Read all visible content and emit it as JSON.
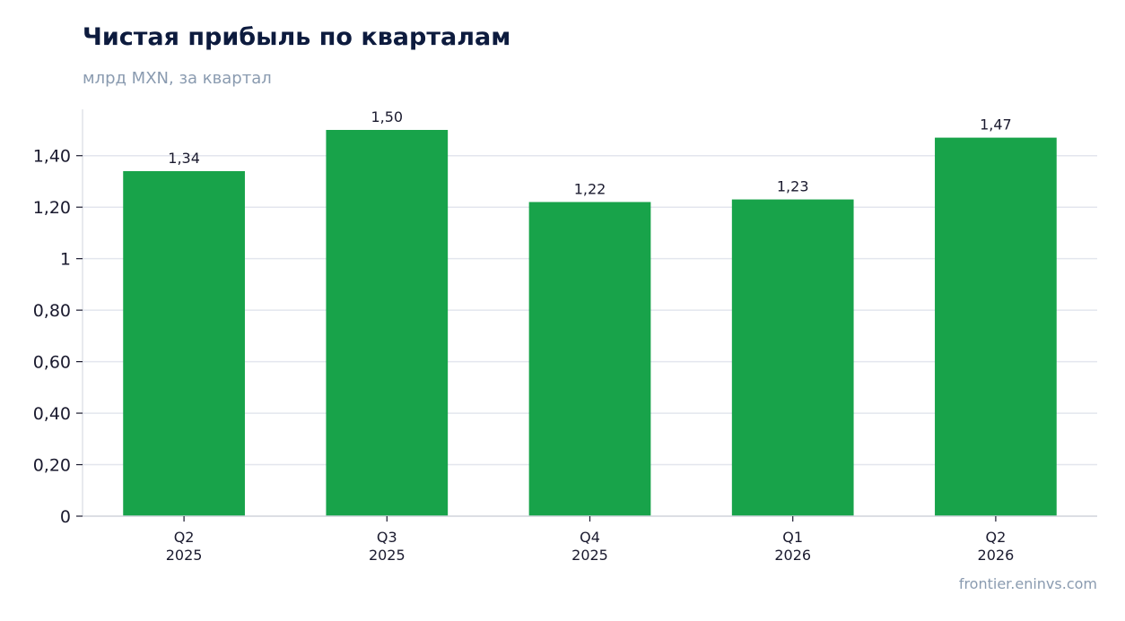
{
  "chart_data": {
    "type": "bar",
    "title": "Чистая прибыль по кварталам",
    "subtitle": "млрд MXN, за квартал",
    "categories": [
      [
        "Q2",
        "2025"
      ],
      [
        "Q3",
        "2025"
      ],
      [
        "Q4",
        "2025"
      ],
      [
        "Q1",
        "2026"
      ],
      [
        "Q2",
        "2026"
      ]
    ],
    "values": [
      1.34,
      1.5,
      1.22,
      1.23,
      1.47
    ],
    "data_labels": [
      "1,34",
      "1,50",
      "1,22",
      "1,23",
      "1,47"
    ],
    "y_ticks": [
      0,
      0.2,
      0.4,
      0.6,
      0.8,
      1.0,
      1.2,
      1.4
    ],
    "y_tick_labels": [
      "0",
      "0,20",
      "0,40",
      "0,60",
      "0,80",
      "1",
      "1,20",
      "1,40"
    ],
    "ylim": [
      0,
      1.58
    ],
    "grid": "horizontal",
    "bar_color": "#18a34a",
    "grid_color": "#e3e6ee",
    "axis_color": "#d0d4dc",
    "source": "frontier.eninvs.com"
  }
}
